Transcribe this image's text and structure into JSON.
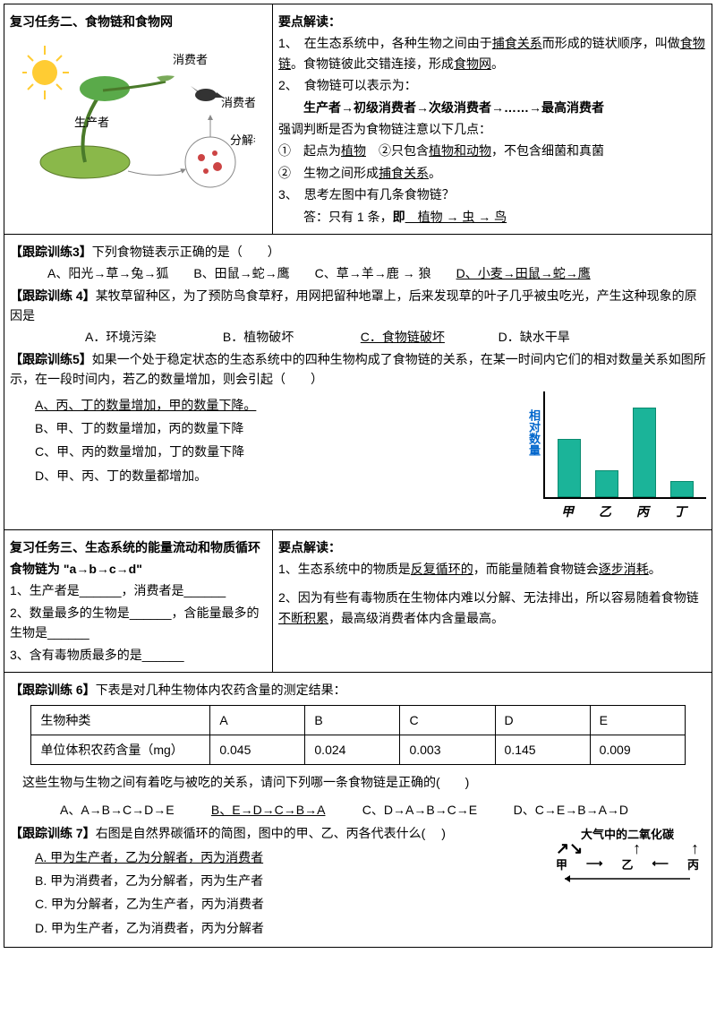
{
  "section2": {
    "title": "复习任务二、食物链和食物网",
    "diagram": {
      "producer": "生产者",
      "consumer": "消费者",
      "decomposer": "分解者"
    },
    "points_title": "要点解读：",
    "p1a": "1、　在生态系统中，各种生物之间由于",
    "p1b": "捕食关系",
    "p1c": "而形成的链状顺序，叫做",
    "p1d": "食物链",
    "p1e": "。食物链彼此交错连接，形成",
    "p1f": "食物网",
    "p1g": "。",
    "p2": "2、　食物链可以表示为：",
    "p2chain": "生产者→初级消费者→次级消费者→……→最高消费者",
    "p3": "强调判断是否为食物链注意以下几点：",
    "p3_1a": "①　起点为",
    "p3_1b": "植物",
    "p3_1c": "　②只包含",
    "p3_1d": "植物和动物",
    "p3_1e": "，不包含细菌和真菌",
    "p3_2a": "②　生物之间形成",
    "p3_2b": "捕食关系",
    "p3_2c": "。",
    "p4": "3、　思考左图中有几条食物链？",
    "p4ans_a": "答：只有 1 条，",
    "p4ans_b": "即",
    "p4ans_c": "　植物 → 虫 → 鸟"
  },
  "ex3": {
    "title": "【跟踪训练3】",
    "q": "下列食物链表示正确的是（　　）",
    "a": "A、阳光→草→兔→狐　　B、田鼠→蛇→鹰　　C、草→羊→鹿 → 狼　　",
    "d": "D、小麦→田鼠→蛇→鹰"
  },
  "ex4": {
    "title": "【跟踪训练 4】",
    "q": "某牧草留种区，为了预防鸟食草籽，用网把留种地罩上，后来发现草的叶子几乎被虫吃光，产生这种现象的原因是",
    "a": "A．环境污染",
    "b": "B．植物破坏",
    "c": "C．食物链破坏",
    "d": "D．缺水干旱"
  },
  "ex5": {
    "title": "【跟踪训练5】",
    "q": "如果一个处于稳定状态的生态系统中的四种生物构成了食物链的关系，在某一时间内它们的相对数量关系如图所示，在一段时间内，若乙的数量增加，则会引起（　　）",
    "optA": "A、丙、丁的数量增加，甲的数量下降。",
    "optB": "B、甲、丁的数量增加，丙的数量下降",
    "optC": "C、甲、丙的数量增加，丁的数量下降",
    "optD": "D、甲、丙、丁的数量都增加。",
    "chart": {
      "ylabel": "相对数量",
      "bars": [
        {
          "label": "甲",
          "h": 65,
          "color": "#1bb499"
        },
        {
          "label": "乙",
          "h": 30,
          "color": "#1bb499"
        },
        {
          "label": "丙",
          "h": 100,
          "color": "#1bb499"
        },
        {
          "label": "丁",
          "h": 18,
          "color": "#1bb499"
        }
      ]
    }
  },
  "section3": {
    "title": "复习任务三、生态系统的能量流动和物质循环",
    "chain": "食物链为 \"a→b→c→d\"",
    "q1": "1、生产者是______，消费者是______",
    "q2": "2、数量最多的生物是______，含能量最多的生物是______",
    "q3": "3、含有毒物质最多的是______",
    "points_title": "要点解读：",
    "p1a": "1、生态系统中的物质是",
    "p1b": "反复循环的",
    "p1c": "，而能量随着食物链会",
    "p1d": "逐步消耗",
    "p1e": "。",
    "p2a": "2、因为有些有毒物质在生物体内难以分解、无法排出，所以容易随着食物链",
    "p2b": "不断积累",
    "p2c": "，最高级消费者体内含量最高。"
  },
  "ex6": {
    "title": "【跟踪训练 6】",
    "q": "下表是对几种生物体内农药含量的测定结果：",
    "table_h1": "生物种类",
    "table_h2": "单位体积农药含量（mg）",
    "cols": [
      "A",
      "B",
      "C",
      "D",
      "E"
    ],
    "vals": [
      "0.045",
      "0.024",
      "0.003",
      "0.145",
      "0.009"
    ],
    "q2": "这些生物与生物之间有着吃与被吃的关系，请问下列哪一条食物链是正确的(　　)",
    "a": "A、A→B→C→D→E",
    "b": "B、E→D→C→B→A",
    "c": "C、D→A→B→C→E",
    "d": "D、C→E→B→A→D"
  },
  "ex7": {
    "title": "【跟踪训练 7】",
    "q": "右图是自然界碳循环的简图，图中的甲、乙、丙各代表什么( 　)",
    "a": "A. 甲为生产者，乙为分解者，丙为消费者",
    "b": "B. 甲为消费者，乙为分解者，丙为生产者",
    "c": "C. 甲为分解者，乙为生产者，丙为消费者",
    "d": "D. 甲为生产者，乙为消费者，丙为分解者",
    "diagram": {
      "top": "大气中的二氧化碳",
      "n1": "甲",
      "n2": "乙",
      "n3": "丙"
    }
  }
}
